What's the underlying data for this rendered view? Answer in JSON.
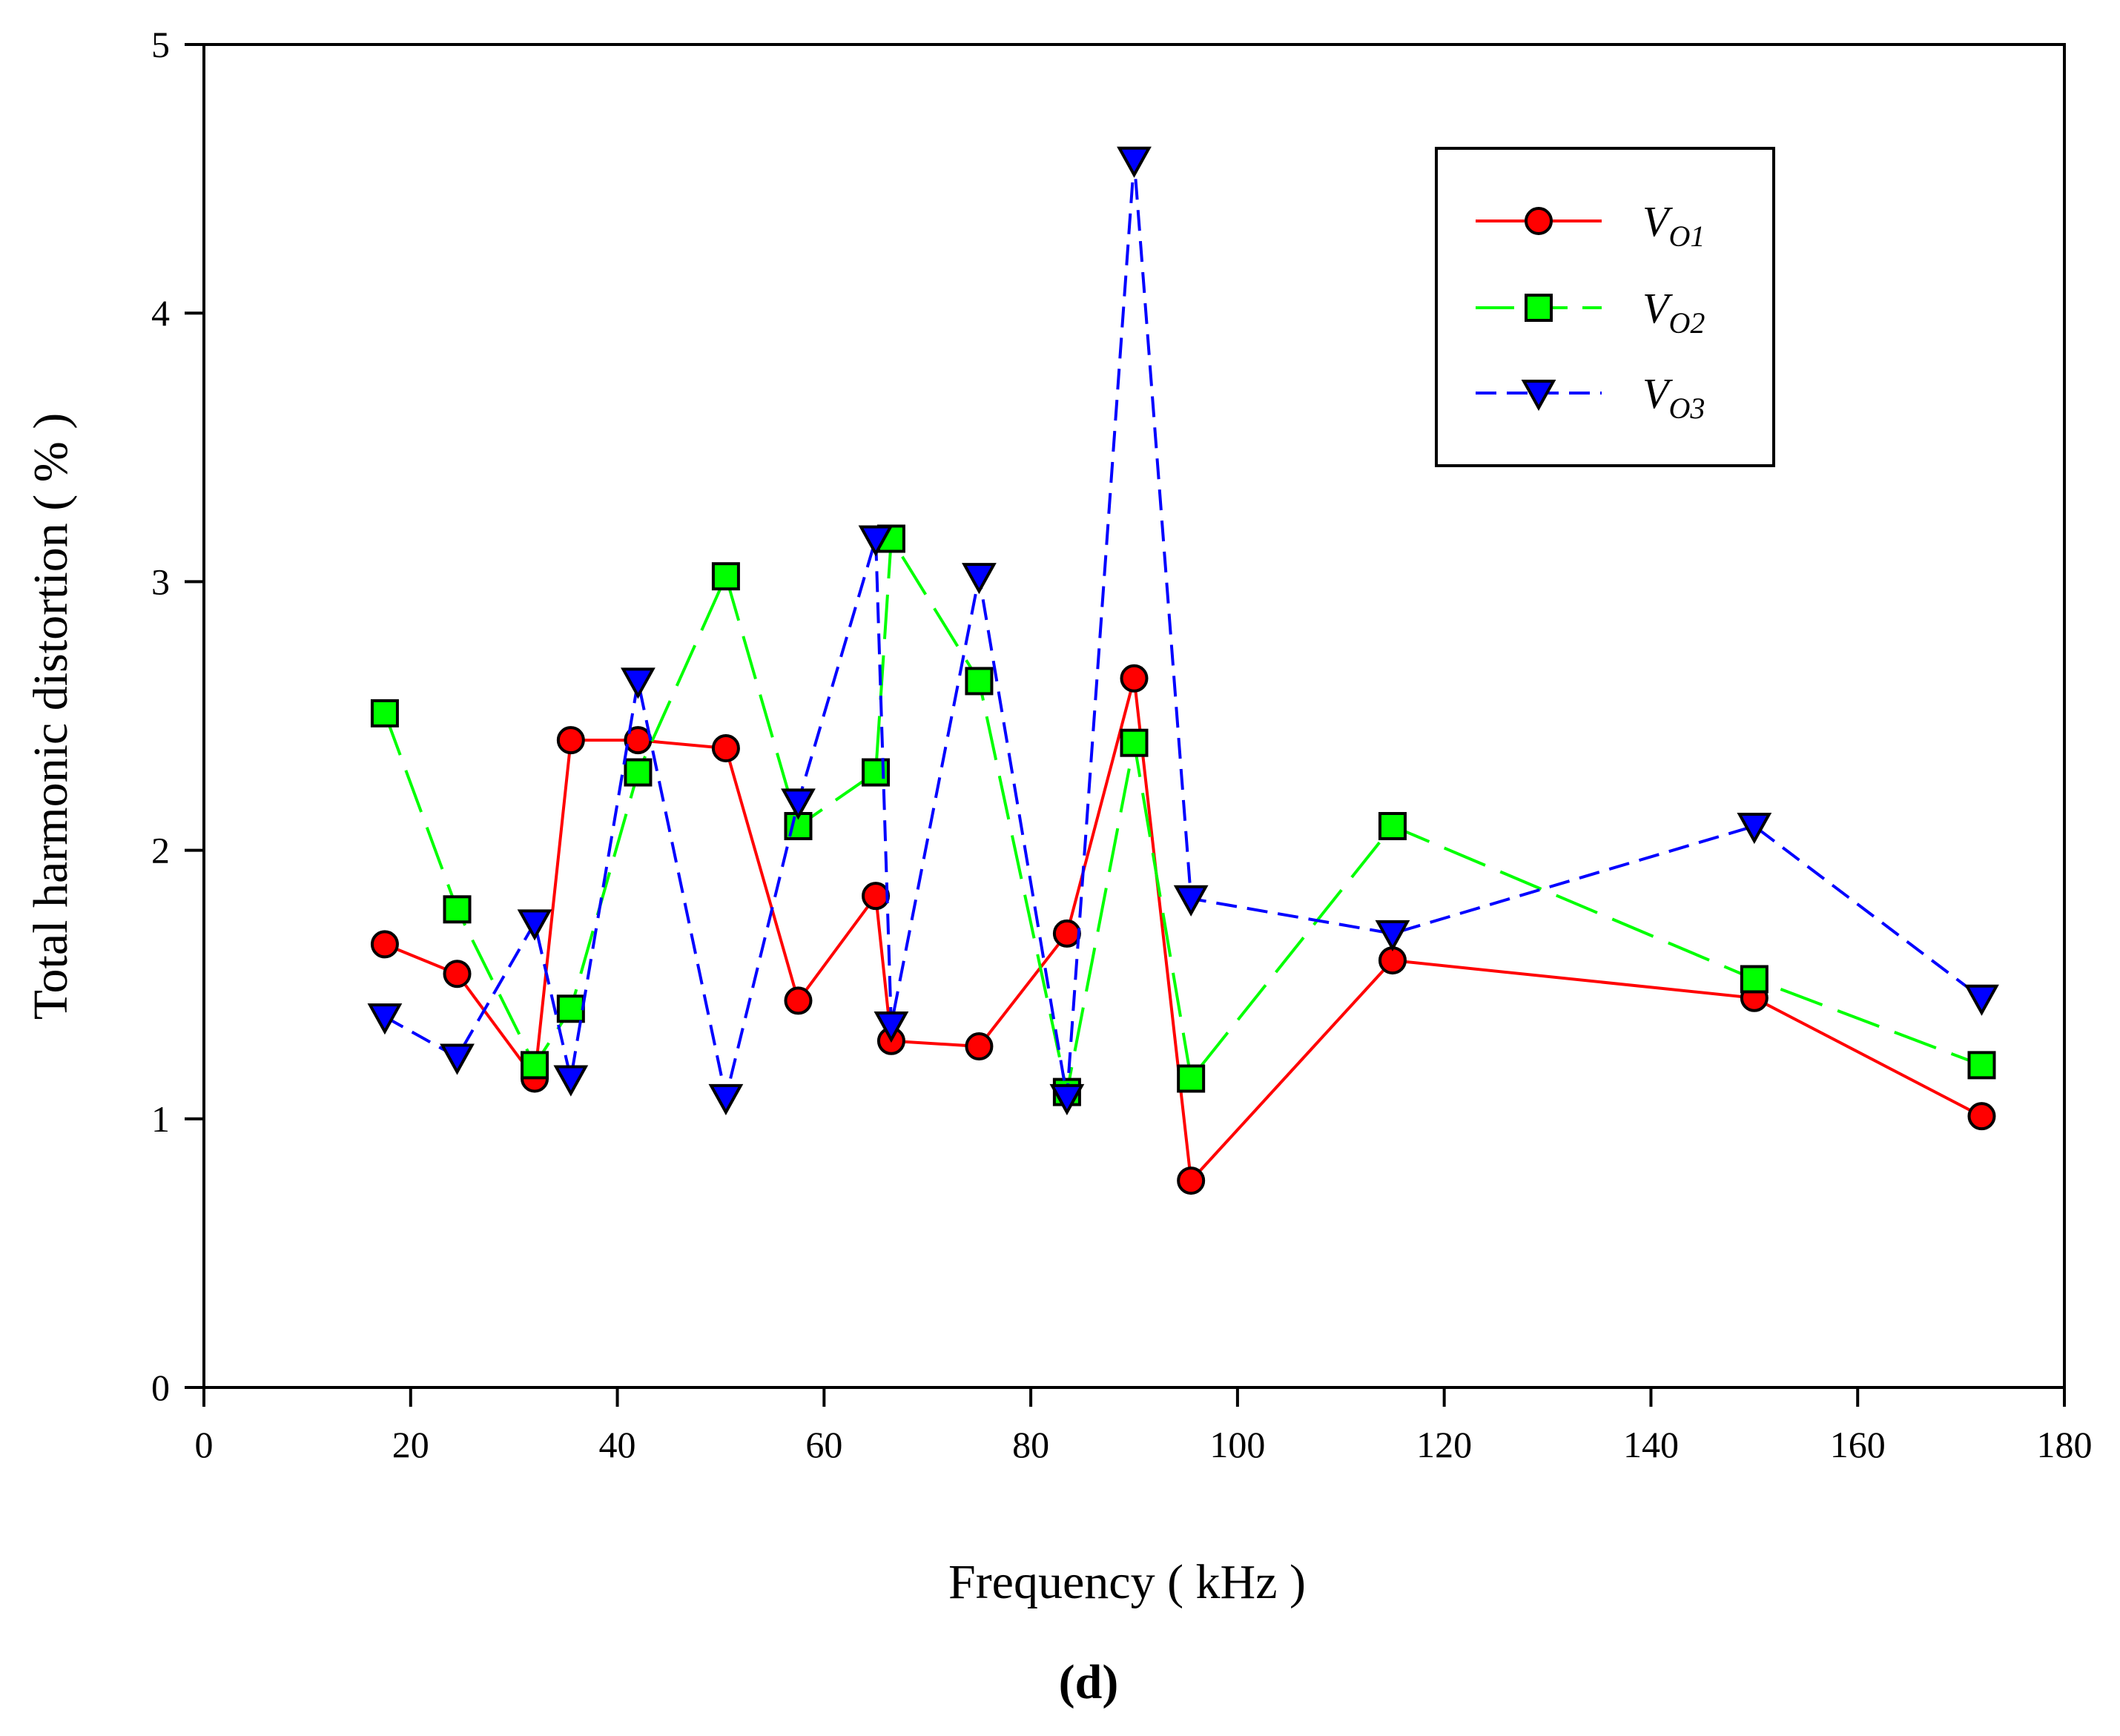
{
  "chart_data": {
    "type": "line",
    "title": "",
    "xlabel": "Frequency ( kHz )",
    "ylabel": "Total harmonic distortion ( % )",
    "panel_label": "(d)",
    "xlim": [
      0,
      180
    ],
    "ylim": [
      0,
      5
    ],
    "xticks": [
      0,
      20,
      40,
      60,
      80,
      100,
      120,
      140,
      160,
      180
    ],
    "yticks": [
      0,
      1,
      2,
      3,
      4,
      5
    ],
    "grid": false,
    "legend_position": "top-right",
    "series": [
      {
        "name": "V",
        "subscript": "O1",
        "color": "#ff0000",
        "marker_fill": "#ff0000",
        "marker": "circle",
        "line_style": "solid",
        "x": [
          17.5,
          24.5,
          32,
          35.5,
          42,
          50.5,
          57.5,
          65,
          66.5,
          75,
          83.5,
          90,
          95.5,
          115,
          150,
          172
        ],
        "y": [
          1.65,
          1.54,
          1.15,
          2.41,
          2.41,
          2.38,
          1.44,
          1.83,
          1.29,
          1.27,
          1.69,
          2.64,
          0.77,
          1.59,
          1.45,
          1.01
        ]
      },
      {
        "name": "V",
        "subscript": "O2",
        "color": "#00ff00",
        "marker_fill": "#00ff00",
        "marker": "square",
        "line_style": "long-dash",
        "x": [
          17.5,
          24.5,
          32,
          35.5,
          42,
          50.5,
          57.5,
          65,
          66.5,
          75,
          83.5,
          90,
          95.5,
          115,
          150,
          172
        ],
        "y": [
          2.51,
          1.78,
          1.2,
          1.41,
          2.29,
          3.02,
          2.09,
          2.29,
          3.16,
          2.63,
          1.1,
          2.4,
          1.15,
          2.09,
          1.52,
          1.2
        ]
      },
      {
        "name": "V",
        "subscript": "O3",
        "color": "#0000ff",
        "marker_fill": "#0000ff",
        "marker": "triangle-down",
        "line_style": "short-dash",
        "x": [
          17.5,
          24.5,
          32,
          35.5,
          42,
          50.5,
          57.5,
          65,
          66.5,
          75,
          83.5,
          90,
          95.5,
          115,
          150,
          172
        ],
        "y": [
          1.38,
          1.23,
          1.73,
          1.15,
          2.63,
          1.08,
          2.18,
          3.16,
          1.35,
          3.02,
          1.08,
          4.57,
          1.82,
          1.69,
          2.09,
          1.45
        ]
      }
    ]
  }
}
